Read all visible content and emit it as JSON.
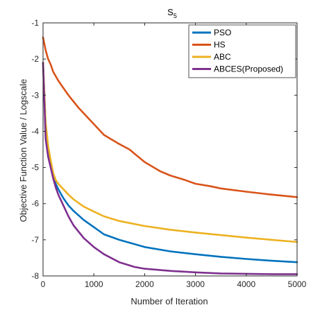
{
  "chart_data": {
    "type": "line",
    "title": "S",
    "title_subscript": "5",
    "xlabel": "Number of Iteration",
    "ylabel": "Objective Function Value / Logscale",
    "xlim": [
      0,
      5000
    ],
    "ylim": [
      -8,
      -1
    ],
    "xticks": [
      0,
      1000,
      2000,
      3000,
      4000,
      5000
    ],
    "yticks": [
      -1,
      -2,
      -3,
      -4,
      -5,
      -6,
      -7,
      -8
    ],
    "grid": false,
    "legend_position": "top-right",
    "series": [
      {
        "name": "PSO",
        "color": "#0072BD",
        "x": [
          0,
          50,
          100,
          150,
          200,
          250,
          300,
          400,
          500,
          600,
          800,
          1000,
          1200,
          1500,
          2000,
          2500,
          3000,
          3500,
          4000,
          4500,
          5000
        ],
        "y": [
          -2.1,
          -3.8,
          -4.45,
          -4.85,
          -5.2,
          -5.45,
          -5.6,
          -5.85,
          -6.05,
          -6.2,
          -6.45,
          -6.65,
          -6.85,
          -7.0,
          -7.2,
          -7.32,
          -7.4,
          -7.47,
          -7.53,
          -7.58,
          -7.62
        ]
      },
      {
        "name": "HS",
        "color": "#D95319",
        "x": [
          0,
          50,
          100,
          150,
          200,
          300,
          400,
          500,
          700,
          1000,
          1200,
          1500,
          1700,
          2000,
          2300,
          2500,
          2800,
          3000,
          3300,
          3500,
          4000,
          4500,
          5000
        ],
        "y": [
          -1.4,
          -1.75,
          -2.0,
          -2.15,
          -2.35,
          -2.6,
          -2.8,
          -3.0,
          -3.35,
          -3.8,
          -4.1,
          -4.35,
          -4.5,
          -4.85,
          -5.1,
          -5.22,
          -5.35,
          -5.45,
          -5.52,
          -5.58,
          -5.67,
          -5.75,
          -5.82
        ]
      },
      {
        "name": "ABC",
        "color": "#EDB120",
        "x": [
          0,
          50,
          100,
          150,
          200,
          250,
          300,
          400,
          500,
          600,
          800,
          1000,
          1200,
          1500,
          2000,
          2500,
          3000,
          3500,
          4000,
          4500,
          5000
        ],
        "y": [
          -2.1,
          -3.75,
          -4.4,
          -4.8,
          -5.15,
          -5.35,
          -5.45,
          -5.6,
          -5.75,
          -5.88,
          -6.08,
          -6.22,
          -6.35,
          -6.48,
          -6.62,
          -6.72,
          -6.8,
          -6.87,
          -6.94,
          -7.0,
          -7.06
        ]
      },
      {
        "name": "ABCES(Proposed)",
        "color": "#7E2F8E",
        "x": [
          0,
          50,
          100,
          150,
          200,
          250,
          300,
          400,
          500,
          600,
          800,
          1000,
          1200,
          1500,
          1800,
          2000,
          2500,
          3000,
          3500,
          4000,
          4500,
          5000
        ],
        "y": [
          -2.1,
          -4.2,
          -4.7,
          -5.0,
          -5.3,
          -5.55,
          -5.75,
          -6.05,
          -6.35,
          -6.6,
          -6.95,
          -7.2,
          -7.4,
          -7.62,
          -7.75,
          -7.8,
          -7.86,
          -7.9,
          -7.93,
          -7.94,
          -7.95,
          -7.95
        ]
      }
    ]
  }
}
